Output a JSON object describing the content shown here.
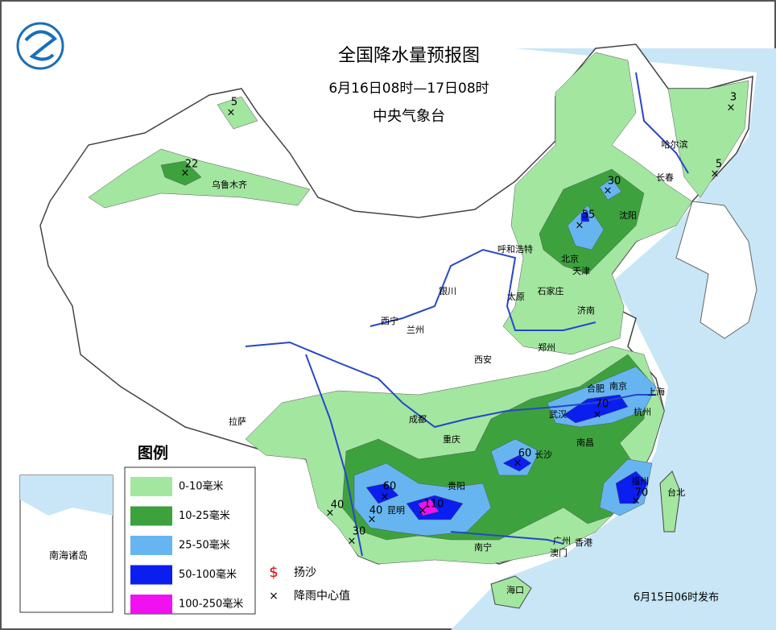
{
  "title": "全国降水量预报图",
  "subtitle": "6月16日08时—17日08时",
  "issuer": "中央气象台",
  "cities": [
    "乌鲁木齐",
    "哈尔滨",
    "长春",
    "沈阳",
    "呼和浩特",
    "北京",
    "天津",
    "银川",
    "太原",
    "石家庄",
    "济南",
    "西宁",
    "兰州",
    "郑州",
    "西安",
    "合肥",
    "南京",
    "上海",
    "武汉",
    "杭州",
    "拉萨",
    "成都",
    "重庆",
    "长沙",
    "南昌",
    "贵阳",
    "昆明",
    "福州",
    "台北",
    "南宁",
    "广州",
    "香港",
    "澳门",
    "海口"
  ],
  "rain_centers": [
    5,
    22,
    3,
    5,
    30,
    55,
    70,
    60,
    70,
    60,
    40,
    40,
    110,
    30
  ],
  "legend": {
    "title": "图例",
    "items": [
      {
        "label": "0-10毫米",
        "color": "#a3e6a0"
      },
      {
        "label": "10-25毫米",
        "color": "#3da23d"
      },
      {
        "label": "25-50毫米",
        "color": "#66b5f0"
      },
      {
        "label": "50-100毫米",
        "color": "#0a1ef0"
      },
      {
        "label": "100-250毫米",
        "color": "#f010f0"
      }
    ],
    "symbols": [
      "扬沙",
      "降雨中心值"
    ]
  },
  "inset_label": "南海诸岛",
  "issued": "6月15日06时发布"
}
